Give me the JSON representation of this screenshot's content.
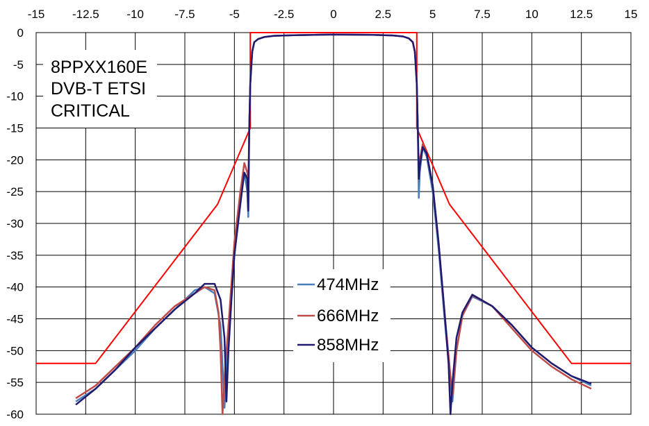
{
  "chart_data": {
    "type": "line",
    "title": "",
    "xlabel": "",
    "ylabel": "",
    "xlim": [
      -15,
      15
    ],
    "ylim": [
      -60,
      0
    ],
    "grid": true,
    "x_ticks": [
      "-15",
      "-12.5",
      "-10",
      "-7.5",
      "-5",
      "-2.5",
      "0",
      "2.5",
      "5",
      "7.5",
      "10",
      "12.5",
      "15"
    ],
    "y_ticks": [
      "0",
      "-5",
      "-10",
      "-15",
      "-20",
      "-25",
      "-30",
      "-35",
      "-40",
      "-45",
      "-50",
      "-55",
      "-60"
    ],
    "legend_position": "center",
    "annotation": [
      "8PPXX160E",
      "DVB-T ETSI",
      "CRITICAL"
    ],
    "series": [
      {
        "name": "474MHz",
        "color": "#4a7ebb",
        "x": [
          -13,
          -12,
          -11,
          -10,
          -9,
          -8,
          -7,
          -6.5,
          -6,
          -5.7,
          -5.6,
          -5.5,
          -5.3,
          -5,
          -4.7,
          -4.5,
          -4.35,
          -4.3,
          -4.25,
          -4.2,
          -4.1,
          -4.0,
          -3.8,
          -3.5,
          -3,
          -2,
          0,
          2,
          3,
          3.5,
          3.8,
          4.0,
          4.1,
          4.2,
          4.25,
          4.3,
          4.35,
          4.5,
          4.7,
          5,
          5.3,
          5.6,
          5.9,
          6.0,
          6.2,
          6.5,
          7,
          8,
          9,
          10,
          11,
          12,
          13
        ],
        "y": [
          -58,
          -56,
          -53,
          -50,
          -46.5,
          -43.5,
          -40.5,
          -40,
          -41,
          -46,
          -52,
          -59,
          -48,
          -35,
          -26,
          -22,
          -25,
          -29,
          -15,
          -8,
          -3,
          -1.5,
          -1,
          -0.7,
          -0.5,
          -0.4,
          -0.3,
          -0.35,
          -0.45,
          -0.6,
          -0.9,
          -1.5,
          -3,
          -8,
          -15,
          -26,
          -22,
          -18,
          -19.5,
          -25,
          -34,
          -45,
          -55,
          -58,
          -50,
          -44.5,
          -41.5,
          -43,
          -46,
          -49.5,
          -52,
          -54,
          -55.5
        ]
      },
      {
        "name": "666MHz",
        "color": "#be4b48",
        "x": [
          -13,
          -12,
          -11,
          -10,
          -9,
          -8,
          -7,
          -6.5,
          -6,
          -5.8,
          -5.7,
          -5.6,
          -5.45,
          -5.3,
          -5,
          -4.7,
          -4.5,
          -4.35,
          -4.3,
          -4.25,
          -4.2,
          -4.1,
          -4.0,
          -3.8,
          -3.5,
          -3,
          -2,
          0,
          2,
          3,
          3.5,
          3.8,
          4.0,
          4.1,
          4.2,
          4.25,
          4.3,
          4.35,
          4.5,
          4.7,
          5,
          5.3,
          5.6,
          5.9,
          6.0,
          6.2,
          6.5,
          7,
          8,
          9,
          10,
          11,
          12,
          13
        ],
        "y": [
          -57.5,
          -55.5,
          -52.5,
          -49.5,
          -46,
          -43,
          -41,
          -40,
          -40.5,
          -44,
          -50,
          -60,
          -52,
          -46,
          -33,
          -25,
          -20.5,
          -22,
          -24,
          -15,
          -8,
          -3,
          -1.5,
          -1,
          -0.7,
          -0.5,
          -0.4,
          -0.3,
          -0.35,
          -0.45,
          -0.6,
          -0.9,
          -1.5,
          -3,
          -8,
          -15,
          -22,
          -20,
          -17.5,
          -19,
          -24,
          -33,
          -44,
          -54,
          -57,
          -50,
          -44.5,
          -41.3,
          -43,
          -46.5,
          -50,
          -52.5,
          -54.5,
          -56
        ]
      },
      {
        "name": "858MHz",
        "color": "#1f1a6e",
        "x": [
          -13,
          -12,
          -11,
          -10,
          -9,
          -8,
          -7,
          -6.5,
          -6,
          -5.7,
          -5.5,
          -5.4,
          -5.3,
          -5.15,
          -5,
          -4.7,
          -4.5,
          -4.35,
          -4.3,
          -4.25,
          -4.2,
          -4.1,
          -4.0,
          -3.8,
          -3.5,
          -3,
          -2,
          0,
          2,
          3,
          3.5,
          3.8,
          4.0,
          4.1,
          4.2,
          4.25,
          4.3,
          4.35,
          4.5,
          4.7,
          5,
          5.3,
          5.6,
          5.8,
          5.9,
          6.0,
          6.2,
          6.5,
          7,
          8,
          9,
          10,
          11,
          12,
          13
        ],
        "y": [
          -58.5,
          -56,
          -53,
          -49.5,
          -46.5,
          -43.5,
          -41,
          -39.5,
          -39.5,
          -42,
          -48,
          -58,
          -50,
          -42,
          -35,
          -27,
          -22,
          -23,
          -28,
          -15,
          -8,
          -3,
          -1.5,
          -1,
          -0.7,
          -0.5,
          -0.4,
          -0.3,
          -0.35,
          -0.45,
          -0.6,
          -0.9,
          -1.5,
          -3,
          -8,
          -15,
          -23,
          -21,
          -18,
          -19,
          -24,
          -33,
          -44,
          -52,
          -60,
          -55,
          -48,
          -44,
          -41.2,
          -43,
          -46,
          -49.5,
          -52,
          -54,
          -55.2
        ]
      },
      {
        "name": "",
        "color": "#ff0000",
        "x": [
          -15,
          -12,
          -5.85,
          -4.2,
          -4.2,
          4.2,
          4.2,
          5.85,
          12,
          15
        ],
        "y": [
          -52,
          -52,
          -27,
          -15,
          0,
          0,
          -15,
          -27,
          -52,
          -52
        ]
      }
    ]
  }
}
